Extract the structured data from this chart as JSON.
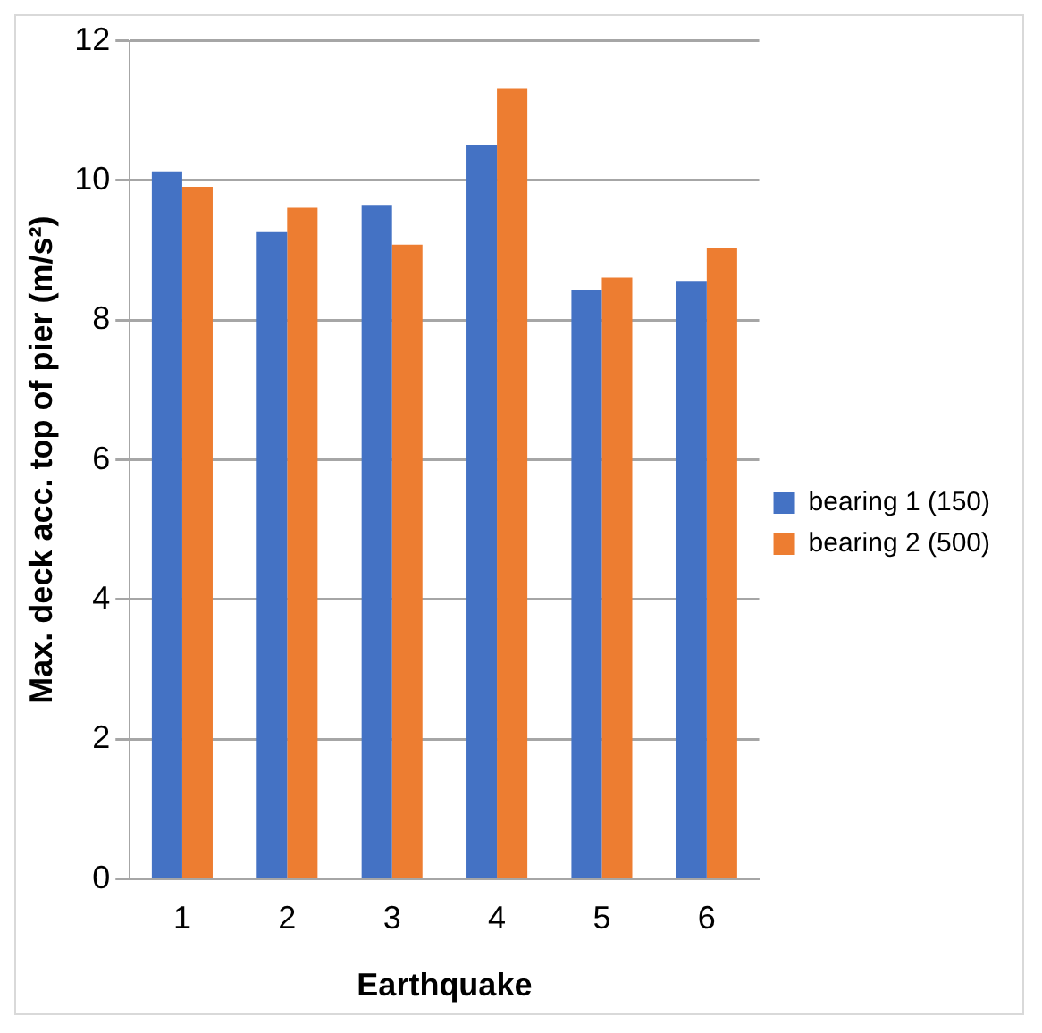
{
  "chart_data": {
    "type": "bar",
    "xlabel": "Earthquake",
    "ylabel": "Max. deck acc. top of pier (m/s²)",
    "categories": [
      "1",
      "2",
      "3",
      "4",
      "5",
      "6"
    ],
    "series": [
      {
        "name": "bearing 1 (150)",
        "color": "#4472c4",
        "values": [
          10.13,
          9.26,
          9.65,
          10.51,
          8.43,
          8.55
        ]
      },
      {
        "name": "bearing 2 (500)",
        "color": "#ed7d31",
        "values": [
          9.91,
          9.61,
          9.08,
          11.31,
          8.61,
          9.04
        ]
      }
    ],
    "ylim": [
      0,
      12
    ],
    "yticks": [
      0,
      2,
      4,
      6,
      8,
      10,
      12
    ],
    "grid": "y",
    "legend": "right"
  }
}
